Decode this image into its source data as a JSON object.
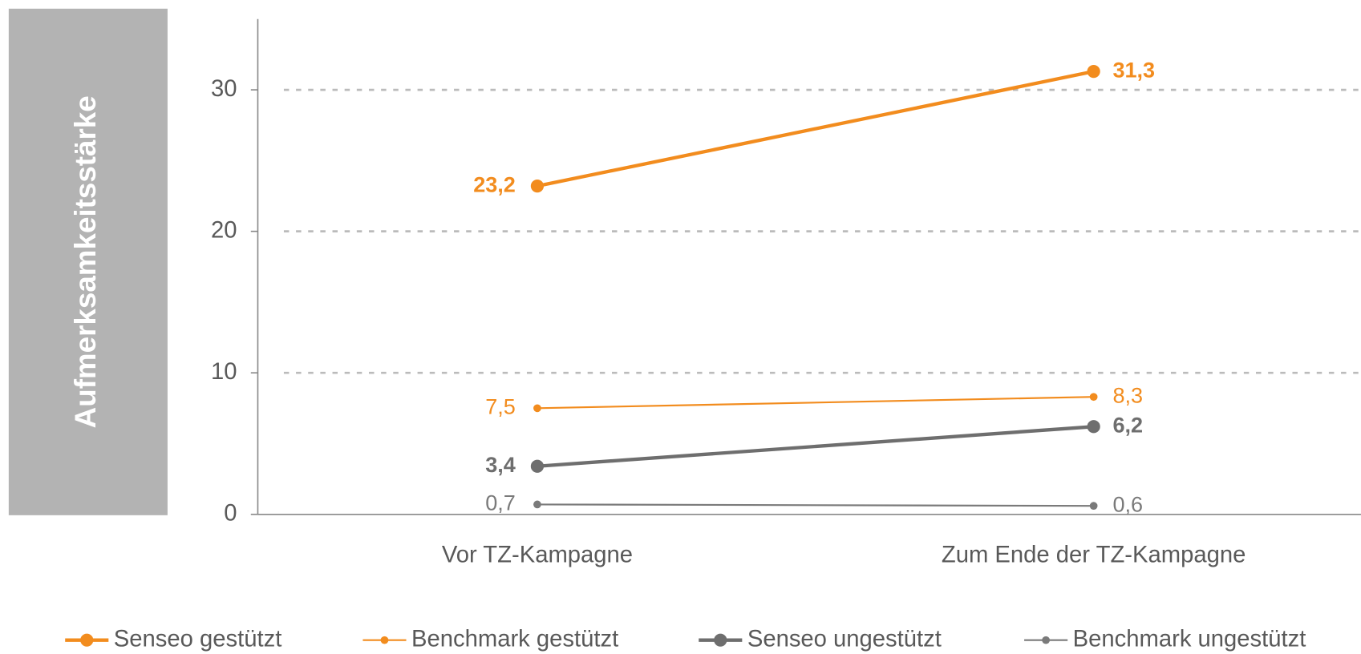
{
  "chart_data": {
    "type": "line",
    "y_label": "Aufmerksamkeitsstärke",
    "categories": [
      "Vor TZ-Kampagne",
      "Zum Ende der TZ-Kampagne"
    ],
    "series": [
      {
        "name": "Senseo gestützt",
        "color": "#f28c1e",
        "values": [
          23.2,
          31.3
        ],
        "value_labels": [
          "23,2",
          "31,3"
        ]
      },
      {
        "name": "Benchmark gestützt",
        "color": "#f28c1e",
        "values": [
          7.5,
          8.3
        ],
        "value_labels": [
          "7,5",
          "8,3"
        ]
      },
      {
        "name": "Senseo ungestützt",
        "color": "#6e6e6e",
        "values": [
          3.4,
          6.2
        ],
        "value_labels": [
          "3,4",
          "6,2"
        ]
      },
      {
        "name": "Benchmark ungestützt",
        "color": "#7a7a7a",
        "values": [
          0.7,
          0.6
        ],
        "value_labels": [
          "0,7",
          "0,6"
        ]
      }
    ],
    "ylim": [
      0,
      35
    ],
    "yticks": [
      0,
      10,
      20,
      30
    ],
    "grid": true,
    "legend": "bottom"
  }
}
